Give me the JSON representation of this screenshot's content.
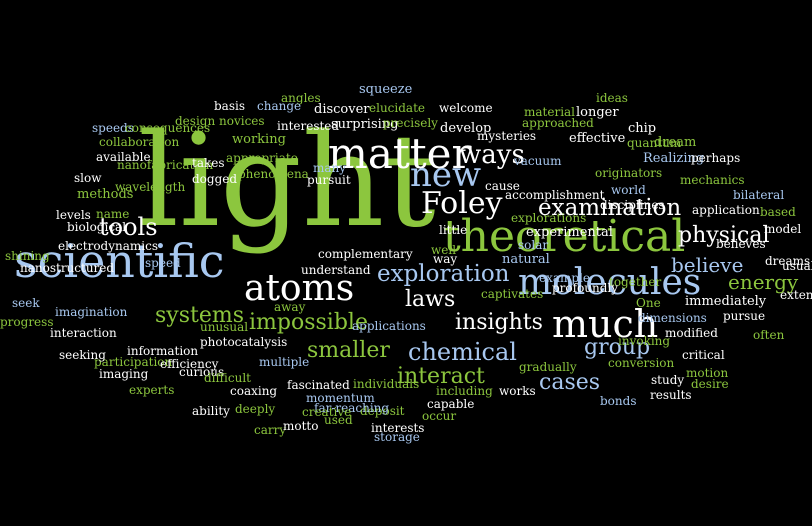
{
  "palette": {
    "background": "#000000",
    "white": "#ffffff",
    "green": "#8cc63e",
    "lightblue": "#a8c8f0",
    "yellowgreen": "#c8d24a"
  },
  "words": [
    {
      "text": "light",
      "color": "green"
    },
    {
      "text": "scientific",
      "color": "lightblue"
    },
    {
      "text": "matter",
      "color": "white"
    },
    {
      "text": "theoretical",
      "color": "green"
    },
    {
      "text": "molecules",
      "color": "lightblue"
    },
    {
      "text": "atoms",
      "color": "white"
    },
    {
      "text": "much",
      "color": "white"
    },
    {
      "text": "new",
      "color": "lightblue"
    },
    {
      "text": "Foley",
      "color": "white"
    },
    {
      "text": "ways",
      "color": "white"
    },
    {
      "text": "examination",
      "color": "white"
    },
    {
      "text": "exploration",
      "color": "lightblue"
    },
    {
      "text": "physical",
      "color": "white"
    },
    {
      "text": "believe",
      "color": "lightblue"
    },
    {
      "text": "energy",
      "color": "green"
    },
    {
      "text": "impossible",
      "color": "green"
    },
    {
      "text": "systems",
      "color": "green"
    },
    {
      "text": "tools",
      "color": "white"
    },
    {
      "text": "laws",
      "color": "white"
    },
    {
      "text": "insights",
      "color": "white"
    },
    {
      "text": "chemical",
      "color": "lightblue"
    },
    {
      "text": "smaller",
      "color": "green"
    },
    {
      "text": "group",
      "color": "lightblue"
    },
    {
      "text": "interact",
      "color": "green"
    },
    {
      "text": "cases",
      "color": "lightblue"
    },
    {
      "text": "squeeze",
      "color": "lightblue"
    },
    {
      "text": "angles",
      "color": "green"
    },
    {
      "text": "basis",
      "color": "white"
    },
    {
      "text": "change",
      "color": "lightblue"
    },
    {
      "text": "discover",
      "color": "white"
    },
    {
      "text": "elucidate",
      "color": "green"
    },
    {
      "text": "welcome",
      "color": "white"
    },
    {
      "text": "material",
      "color": "green"
    },
    {
      "text": "longer",
      "color": "white"
    },
    {
      "text": "ideas",
      "color": "green"
    },
    {
      "text": "chip",
      "color": "white"
    },
    {
      "text": "speeds",
      "color": "lightblue"
    },
    {
      "text": "design",
      "color": "green"
    },
    {
      "text": "novices",
      "color": "green"
    },
    {
      "text": "interested",
      "color": "white"
    },
    {
      "text": "surprising",
      "color": "white"
    },
    {
      "text": "precisely",
      "color": "green"
    },
    {
      "text": "develop",
      "color": "white"
    },
    {
      "text": "approached",
      "color": "green"
    },
    {
      "text": "quantum",
      "color": "green"
    },
    {
      "text": "collaboration",
      "color": "green"
    },
    {
      "text": "consequences",
      "color": "green"
    },
    {
      "text": "nanofabrication",
      "color": "green"
    },
    {
      "text": "working",
      "color": "green"
    },
    {
      "text": "mysteries",
      "color": "white"
    },
    {
      "text": "effective",
      "color": "white"
    },
    {
      "text": "dream",
      "color": "green"
    },
    {
      "text": "available",
      "color": "white"
    },
    {
      "text": "takes",
      "color": "white"
    },
    {
      "text": "appropriate",
      "color": "green"
    },
    {
      "text": "vacuum",
      "color": "lightblue"
    },
    {
      "text": "Realizing",
      "color": "lightblue"
    },
    {
      "text": "perhaps",
      "color": "white"
    },
    {
      "text": "slow",
      "color": "white"
    },
    {
      "text": "dogged",
      "color": "white"
    },
    {
      "text": "phenomena",
      "color": "green"
    },
    {
      "text": "many",
      "color": "lightblue"
    },
    {
      "text": "pursuit",
      "color": "white"
    },
    {
      "text": "cause",
      "color": "white"
    },
    {
      "text": "originators",
      "color": "green"
    },
    {
      "text": "mechanics",
      "color": "green"
    },
    {
      "text": "methods",
      "color": "green"
    },
    {
      "text": "wavelength",
      "color": "green"
    },
    {
      "text": "accomplishment",
      "color": "white"
    },
    {
      "text": "world",
      "color": "lightblue"
    },
    {
      "text": "bilateral",
      "color": "lightblue"
    },
    {
      "text": "levels",
      "color": "white"
    },
    {
      "text": "name",
      "color": "green"
    },
    {
      "text": "experimental",
      "color": "white"
    },
    {
      "text": "explorations",
      "color": "green"
    },
    {
      "text": "disciplines",
      "color": "white"
    },
    {
      "text": "solar",
      "color": "lightblue"
    },
    {
      "text": "application",
      "color": "white"
    },
    {
      "text": "based",
      "color": "green"
    },
    {
      "text": "biological",
      "color": "white"
    },
    {
      "text": "little",
      "color": "white"
    },
    {
      "text": "natural",
      "color": "lightblue"
    },
    {
      "text": "model",
      "color": "white"
    },
    {
      "text": "electrodynamics",
      "color": "white"
    },
    {
      "text": "way",
      "color": "white"
    },
    {
      "text": "believes",
      "color": "white"
    },
    {
      "text": "shining",
      "color": "green"
    },
    {
      "text": "complementary",
      "color": "white"
    },
    {
      "text": "well",
      "color": "green"
    },
    {
      "text": "dreams",
      "color": "white"
    },
    {
      "text": "speed",
      "color": "lightblue"
    },
    {
      "text": "nanostructured",
      "color": "white"
    },
    {
      "text": "understand",
      "color": "white"
    },
    {
      "text": "example",
      "color": "lightblue"
    },
    {
      "text": "together",
      "color": "green"
    },
    {
      "text": "usual",
      "color": "white"
    },
    {
      "text": "seek",
      "color": "lightblue"
    },
    {
      "text": "captivates",
      "color": "green"
    },
    {
      "text": "extent",
      "color": "white"
    },
    {
      "text": "progress",
      "color": "green"
    },
    {
      "text": "imagination",
      "color": "lightblue"
    },
    {
      "text": "away",
      "color": "green"
    },
    {
      "text": "profoundly",
      "color": "white"
    },
    {
      "text": "One",
      "color": "green"
    },
    {
      "text": "immediately",
      "color": "white"
    },
    {
      "text": "interaction",
      "color": "white"
    },
    {
      "text": "unusual",
      "color": "green"
    },
    {
      "text": "applications",
      "color": "lightblue"
    },
    {
      "text": "dimensions",
      "color": "lightblue"
    },
    {
      "text": "pursue",
      "color": "white"
    },
    {
      "text": "participation",
      "color": "green"
    },
    {
      "text": "photocatalysis",
      "color": "white"
    },
    {
      "text": "modified",
      "color": "white"
    },
    {
      "text": "invoking",
      "color": "green"
    },
    {
      "text": "often",
      "color": "green"
    },
    {
      "text": "seeking",
      "color": "white"
    },
    {
      "text": "information",
      "color": "white"
    },
    {
      "text": "efficiency",
      "color": "white"
    },
    {
      "text": "critical",
      "color": "white"
    },
    {
      "text": "conversion",
      "color": "green"
    },
    {
      "text": "imaging",
      "color": "white"
    },
    {
      "text": "multiple",
      "color": "lightblue"
    },
    {
      "text": "gradually",
      "color": "green"
    },
    {
      "text": "motion",
      "color": "green"
    },
    {
      "text": "experts",
      "color": "green"
    },
    {
      "text": "curious",
      "color": "white"
    },
    {
      "text": "study",
      "color": "white"
    },
    {
      "text": "difficult",
      "color": "green"
    },
    {
      "text": "desire",
      "color": "green"
    },
    {
      "text": "coaxing",
      "color": "white"
    },
    {
      "text": "fascinated",
      "color": "white"
    },
    {
      "text": "individuals",
      "color": "green"
    },
    {
      "text": "including",
      "color": "green"
    },
    {
      "text": "works",
      "color": "white"
    },
    {
      "text": "results",
      "color": "white"
    },
    {
      "text": "ability",
      "color": "white"
    },
    {
      "text": "deeply",
      "color": "green"
    },
    {
      "text": "momentum",
      "color": "lightblue"
    },
    {
      "text": "capable",
      "color": "white"
    },
    {
      "text": "bonds",
      "color": "lightblue"
    },
    {
      "text": "deposit",
      "color": "green"
    },
    {
      "text": "carry",
      "color": "green"
    },
    {
      "text": "motto",
      "color": "white"
    },
    {
      "text": "used",
      "color": "green"
    },
    {
      "text": "interests",
      "color": "white"
    },
    {
      "text": "storage",
      "color": "lightblue"
    },
    {
      "text": "far-reaching",
      "color": "lightblue"
    },
    {
      "text": "creative",
      "color": "green"
    },
    {
      "text": "occur",
      "color": "green"
    }
  ]
}
